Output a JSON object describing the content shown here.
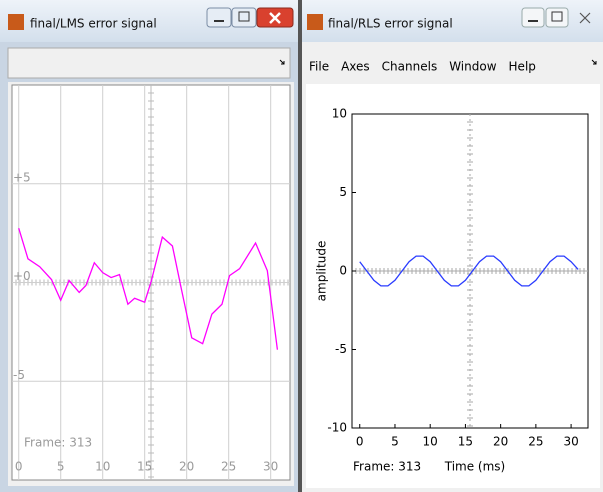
{
  "windows": [
    {
      "title": "final/LMS error signal"
    },
    {
      "title": "final/RLS error signal",
      "menu": [
        "File",
        "Axes",
        "Channels",
        "Window",
        "Help"
      ]
    }
  ],
  "chart_data": [
    {
      "type": "line",
      "annotation": "Frame: 313",
      "x": [
        0,
        1.1,
        2.5,
        3.9,
        5,
        6,
        7.2,
        8,
        9,
        10,
        11,
        12,
        13,
        13.8,
        15,
        15.8,
        17.1,
        18.3,
        19.4,
        20.6,
        21.9,
        23,
        24.2,
        25.1,
        26.3,
        28.2,
        29.6,
        30.8
      ],
      "series": [
        {
          "color": "#ff00ff",
          "values": [
            2.75,
            1.2,
            0.8,
            0.15,
            -0.9,
            0.1,
            -0.5,
            -0.15,
            1.0,
            0.5,
            0.25,
            0.4,
            -1.1,
            -0.8,
            -1.0,
            0.1,
            2.3,
            1.85,
            -0.4,
            -2.8,
            -3.1,
            -1.6,
            -1.1,
            0.35,
            0.7,
            2.0,
            0.6,
            -3.4
          ]
        }
      ],
      "xlim": [
        -0.8,
        32.3
      ],
      "ylim": [
        -10,
        10
      ],
      "xticks": [
        0,
        5,
        10,
        15,
        20,
        25,
        30
      ],
      "yticks": [
        {
          "value": 5,
          "label": "+5"
        },
        {
          "value": 0,
          "label": "+0"
        },
        -5
      ],
      "grid": true
    },
    {
      "type": "line",
      "annotation": "Frame: 313",
      "xlabel": "Time (ms)",
      "ylabel": "amplitude",
      "x": [
        0,
        1,
        2,
        3,
        4,
        5,
        6,
        7,
        8,
        9,
        10,
        11,
        12,
        13,
        14,
        15,
        16,
        17,
        18,
        19,
        20,
        21,
        22,
        23,
        24,
        25,
        26,
        27,
        28,
        29,
        30,
        31
      ],
      "series": [
        {
          "color": "#2a3cff",
          "values": [
            0.59,
            0,
            -0.59,
            -0.95,
            -0.95,
            -0.59,
            0,
            0.59,
            0.95,
            0.95,
            0.59,
            0,
            -0.59,
            -0.95,
            -0.95,
            -0.59,
            0,
            0.59,
            0.95,
            0.95,
            0.59,
            0,
            -0.59,
            -0.95,
            -0.95,
            -0.59,
            0,
            0.59,
            0.95,
            0.95,
            0.59,
            0.1
          ]
        }
      ],
      "xlim": [
        -1.1,
        32.4
      ],
      "ylim": [
        -10,
        10
      ],
      "xticks": [
        0,
        5,
        10,
        15,
        20,
        25,
        30
      ],
      "yticks": [
        10,
        5,
        0,
        -5,
        -10
      ],
      "grid": false
    }
  ]
}
